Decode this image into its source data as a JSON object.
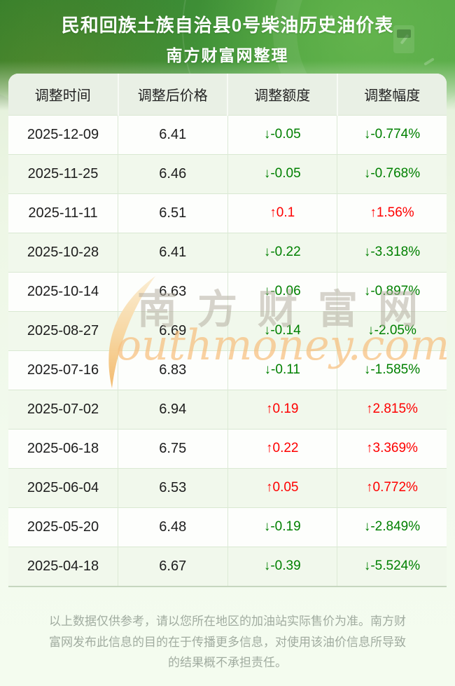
{
  "banner": {
    "title": "民和回族土族自治县0号柴油历史油价表",
    "subtitle": "南方财富网整理"
  },
  "table": {
    "columns": [
      "调整时间",
      "调整后价格",
      "调整额度",
      "调整幅度"
    ],
    "rows": [
      {
        "date": "2025-12-09",
        "price": "6.41",
        "change": "↓-0.05",
        "percent": "↓-0.774%",
        "direction": "down"
      },
      {
        "date": "2025-11-25",
        "price": "6.46",
        "change": "↓-0.05",
        "percent": "↓-0.768%",
        "direction": "down"
      },
      {
        "date": "2025-11-11",
        "price": "6.51",
        "change": "↑0.1",
        "percent": "↑1.56%",
        "direction": "up"
      },
      {
        "date": "2025-10-28",
        "price": "6.41",
        "change": "↓-0.22",
        "percent": "↓-3.318%",
        "direction": "down"
      },
      {
        "date": "2025-10-14",
        "price": "6.63",
        "change": "↓-0.06",
        "percent": "↓-0.897%",
        "direction": "down"
      },
      {
        "date": "2025-08-27",
        "price": "6.69",
        "change": "↓-0.14",
        "percent": "↓-2.05%",
        "direction": "down"
      },
      {
        "date": "2025-07-16",
        "price": "6.83",
        "change": "↓-0.11",
        "percent": "↓-1.585%",
        "direction": "down"
      },
      {
        "date": "2025-07-02",
        "price": "6.94",
        "change": "↑0.19",
        "percent": "↑2.815%",
        "direction": "up"
      },
      {
        "date": "2025-06-18",
        "price": "6.75",
        "change": "↑0.22",
        "percent": "↑3.369%",
        "direction": "up"
      },
      {
        "date": "2025-06-04",
        "price": "6.53",
        "change": "↑0.05",
        "percent": "↑0.772%",
        "direction": "up"
      },
      {
        "date": "2025-05-20",
        "price": "6.48",
        "change": "↓-0.19",
        "percent": "↓-2.849%",
        "direction": "down"
      },
      {
        "date": "2025-04-18",
        "price": "6.67",
        "change": "↓-0.39",
        "percent": "↓-5.524%",
        "direction": "down"
      }
    ]
  },
  "watermark": {
    "cn": "南方财富网",
    "en": "outhmoney.com"
  },
  "footer": {
    "disclaimer": "以上数据仅供参考，请以您所在地区的加油站实际售价为准。南方财富网发布此信息的目的在于传播更多信息，对使用该油价信息所导致的结果概不承担责任。"
  },
  "colors": {
    "up_red": "#fe0000",
    "down_green": "#008000",
    "banner_green": "#4da23f",
    "row_alt_green": "#f1f8ec",
    "header_cell_bg": "#e9f0e5"
  }
}
